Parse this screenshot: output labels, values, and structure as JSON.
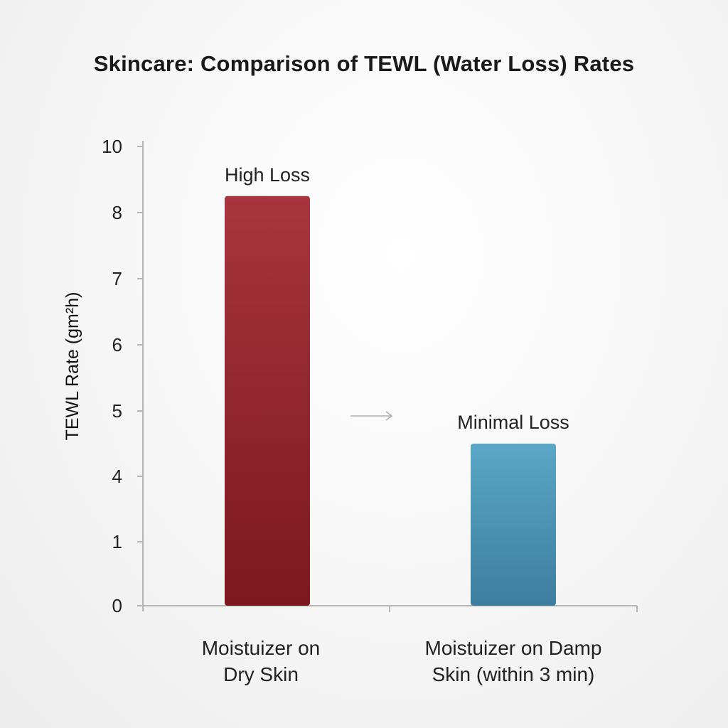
{
  "chart_data": {
    "type": "bar",
    "title": "Skincare: Comparison of TEWL (Water Loss) Rates",
    "ylabel": "TEWL Rate (gm²h)",
    "xlabel": "",
    "yticks": [
      "0",
      "1",
      "4",
      "5",
      "6",
      "7",
      "8",
      "10"
    ],
    "categories": [
      [
        "Moistuizer on",
        "Dry Skin"
      ],
      [
        "Moistuizer on Damp",
        "Skin (within 3 min)"
      ]
    ],
    "values": [
      8.5,
      4.5
    ],
    "bar_labels": [
      "High Loss",
      "Minimal Loss"
    ],
    "grid": false,
    "legend": "none",
    "colors": {
      "bar1_top": "#a8353d",
      "bar1_bottom": "#7b1820",
      "bar2_top": "#5aa7c6",
      "bar2_bottom": "#3e7d9f",
      "axis": "#b5b5b5",
      "arrow": "#b0b0b0"
    }
  }
}
